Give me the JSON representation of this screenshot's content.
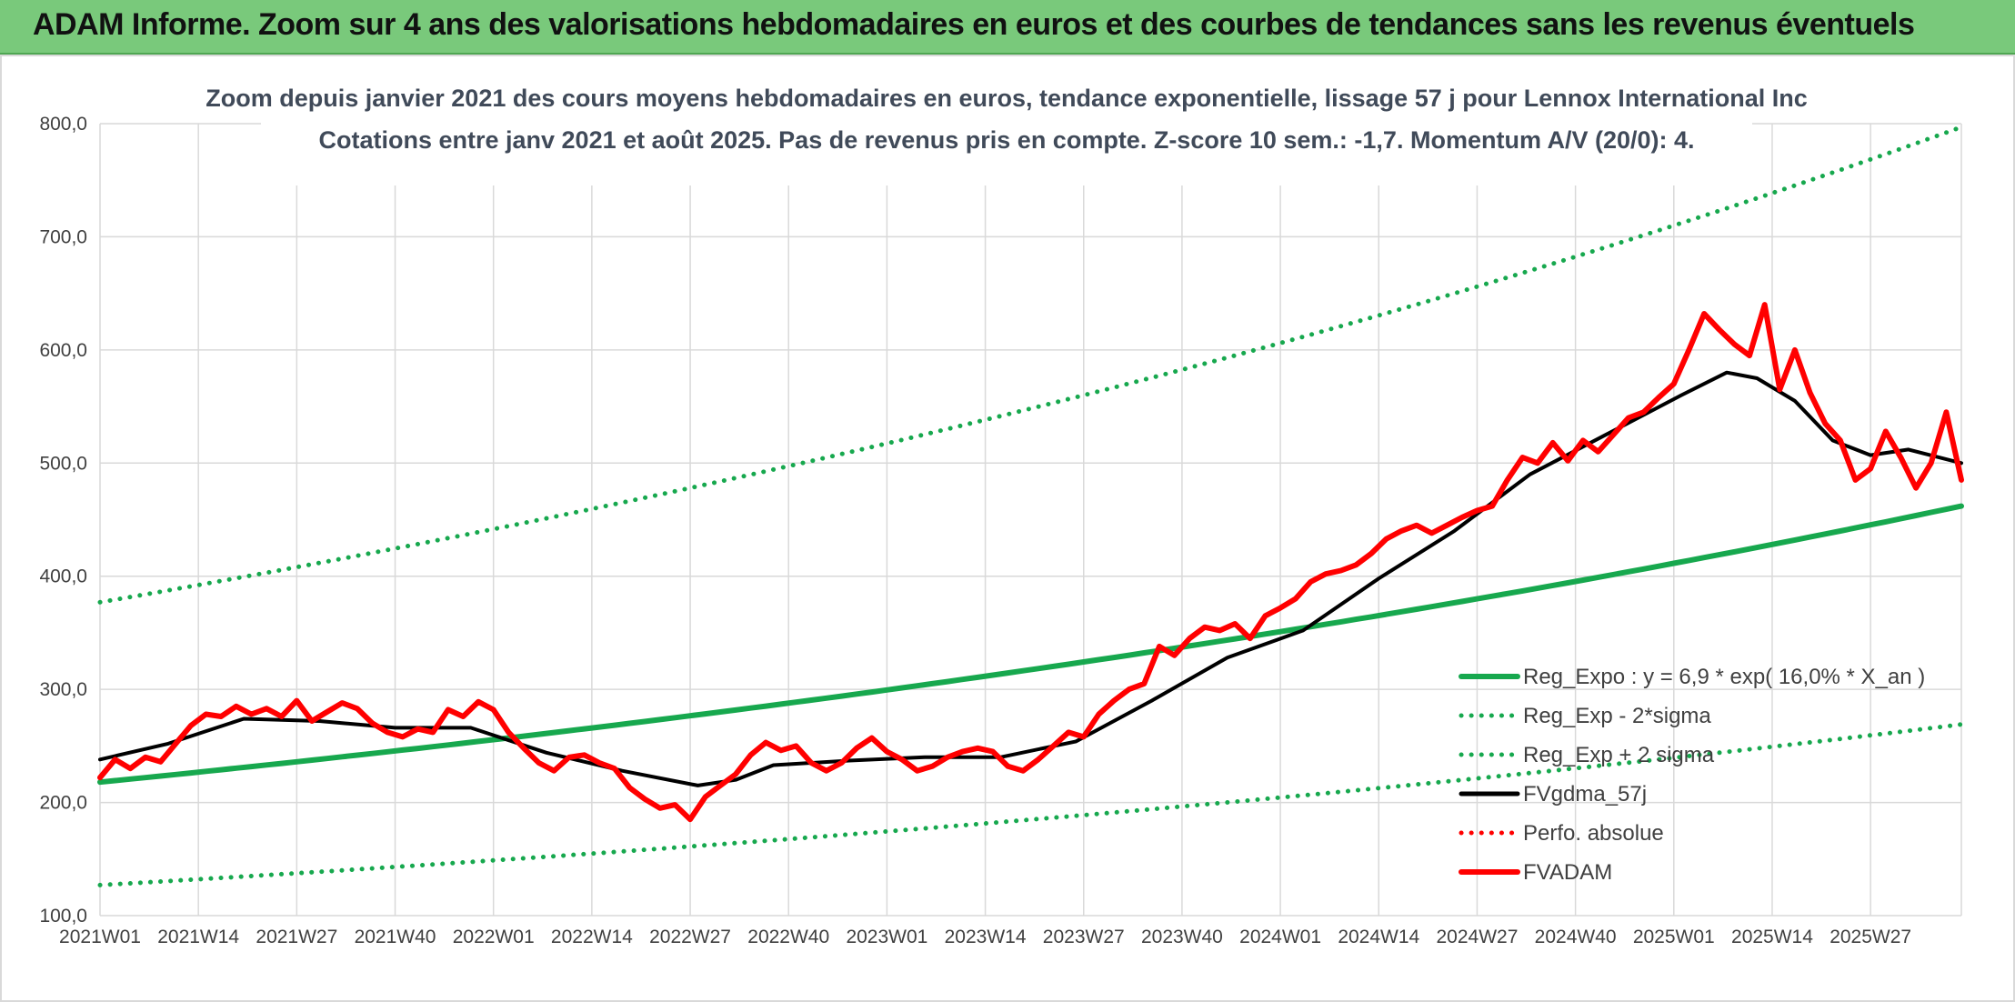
{
  "banner": {
    "title": "ADAM Informe. Zoom sur 4 ans des valorisations hebdomadaires en euros et des courbes de tendances sans les revenus éventuels"
  },
  "colors": {
    "banner_bg": "#79c97b",
    "trend": "#17a84e",
    "actual": "#ff0000",
    "smooth": "#000000"
  },
  "chart_data": {
    "type": "line",
    "title": "Zoom depuis janvier 2021 des cours moyens hebdomadaires en euros, tendance exponentielle, lissage 57 j pour Lennox International Inc",
    "subtitle": "Cotations entre janv 2021 et août 2025. Pas de revenus pris en compte. Z-score 10 sem.: -1,7. Momentum A/V (20/0): 4.",
    "ylim": [
      100,
      800
    ],
    "yticks": [
      "800,0",
      "700,0",
      "600,0",
      "500,0",
      "400,0",
      "300,0",
      "200,0",
      "100,0"
    ],
    "xticks": [
      "2021W01",
      "2021W14",
      "2021W27",
      "2021W40",
      "2022W01",
      "2022W14",
      "2022W27",
      "2022W40",
      "2023W01",
      "2023W14",
      "2023W27",
      "2023W40",
      "2024W01",
      "2024W14",
      "2024W27",
      "2024W40",
      "2025W01",
      "2025W14",
      "2025W27"
    ],
    "grid": true,
    "legend_position": "bottom-right",
    "series": [
      {
        "name": "Reg_Expo : y = 6,9 * exp( 16,0% *  X_an )",
        "style": "solid-thick",
        "color": "#17a84e",
        "x": [
          1,
          247
        ],
        "formula": "exponential",
        "start": 218,
        "end": 462
      },
      {
        "name": "Reg_Exp - 2*sigma",
        "style": "dotted",
        "color": "#17a84e",
        "x": [
          1,
          247
        ],
        "formula": "exponential",
        "start": 127,
        "end": 269
      },
      {
        "name": "Reg_Exp + 2 sigma",
        "style": "dotted",
        "color": "#17a84e",
        "x": [
          1,
          247
        ],
        "formula": "exponential",
        "start": 377,
        "end": 797
      },
      {
        "name": "FVgdma_57j",
        "style": "solid",
        "color": "#000000",
        "x": [
          1,
          10,
          20,
          30,
          40,
          50,
          60,
          70,
          80,
          85,
          90,
          100,
          110,
          120,
          130,
          140,
          150,
          160,
          170,
          180,
          190,
          200,
          210,
          216,
          220,
          225,
          230,
          235,
          240,
          247
        ],
        "y": [
          238,
          252,
          274,
          272,
          266,
          266,
          244,
          228,
          215,
          220,
          233,
          237,
          240,
          240,
          254,
          290,
          328,
          352,
          398,
          440,
          490,
          525,
          560,
          580,
          575,
          555,
          520,
          507,
          512,
          500
        ]
      },
      {
        "name": "Perfo. absolue",
        "style": "dotted",
        "color": "#ff0000",
        "x": [],
        "y": []
      },
      {
        "name": "FVADAM",
        "style": "solid-thick",
        "color": "#ff0000",
        "x": [
          1,
          3,
          5,
          7,
          9,
          11,
          13,
          15,
          17,
          19,
          21,
          23,
          25,
          27,
          29,
          31,
          33,
          35,
          37,
          39,
          41,
          43,
          45,
          47,
          49,
          51,
          53,
          55,
          57,
          59,
          61,
          63,
          65,
          67,
          69,
          71,
          73,
          75,
          77,
          79,
          81,
          83,
          85,
          87,
          89,
          91,
          93,
          95,
          97,
          99,
          101,
          103,
          105,
          107,
          109,
          111,
          113,
          115,
          117,
          119,
          121,
          123,
          125,
          127,
          129,
          131,
          133,
          135,
          137,
          139,
          141,
          143,
          145,
          147,
          149,
          151,
          153,
          155,
          157,
          159,
          161,
          163,
          165,
          167,
          169,
          171,
          173,
          175,
          177,
          179,
          181,
          183,
          185,
          187,
          189,
          191,
          193,
          195,
          197,
          199,
          201,
          203,
          205,
          207,
          209,
          211,
          213,
          215,
          217,
          219,
          221,
          223,
          225,
          227,
          229,
          231,
          233,
          235,
          237,
          239,
          241,
          243,
          245,
          247
        ],
        "y": [
          222,
          238,
          230,
          240,
          236,
          252,
          268,
          278,
          276,
          285,
          278,
          283,
          276,
          290,
          272,
          280,
          288,
          283,
          270,
          262,
          258,
          265,
          262,
          282,
          276,
          289,
          282,
          262,
          248,
          235,
          228,
          240,
          242,
          235,
          230,
          213,
          203,
          195,
          198,
          185,
          205,
          215,
          225,
          242,
          253,
          246,
          250,
          235,
          228,
          235,
          248,
          257,
          245,
          238,
          228,
          232,
          240,
          245,
          248,
          245,
          232,
          228,
          238,
          250,
          262,
          258,
          278,
          290,
          300,
          305,
          338,
          330,
          345,
          355,
          352,
          358,
          345,
          365,
          372,
          380,
          395,
          402,
          405,
          410,
          420,
          433,
          440,
          445,
          438,
          445,
          452,
          458,
          462,
          485,
          505,
          500,
          518,
          502,
          520,
          510,
          525,
          540,
          545,
          558,
          570,
          600,
          632,
          618,
          605,
          595,
          640,
          565,
          600,
          562,
          535,
          520,
          485,
          495,
          528,
          505,
          478,
          500,
          545,
          485
        ]
      }
    ]
  }
}
